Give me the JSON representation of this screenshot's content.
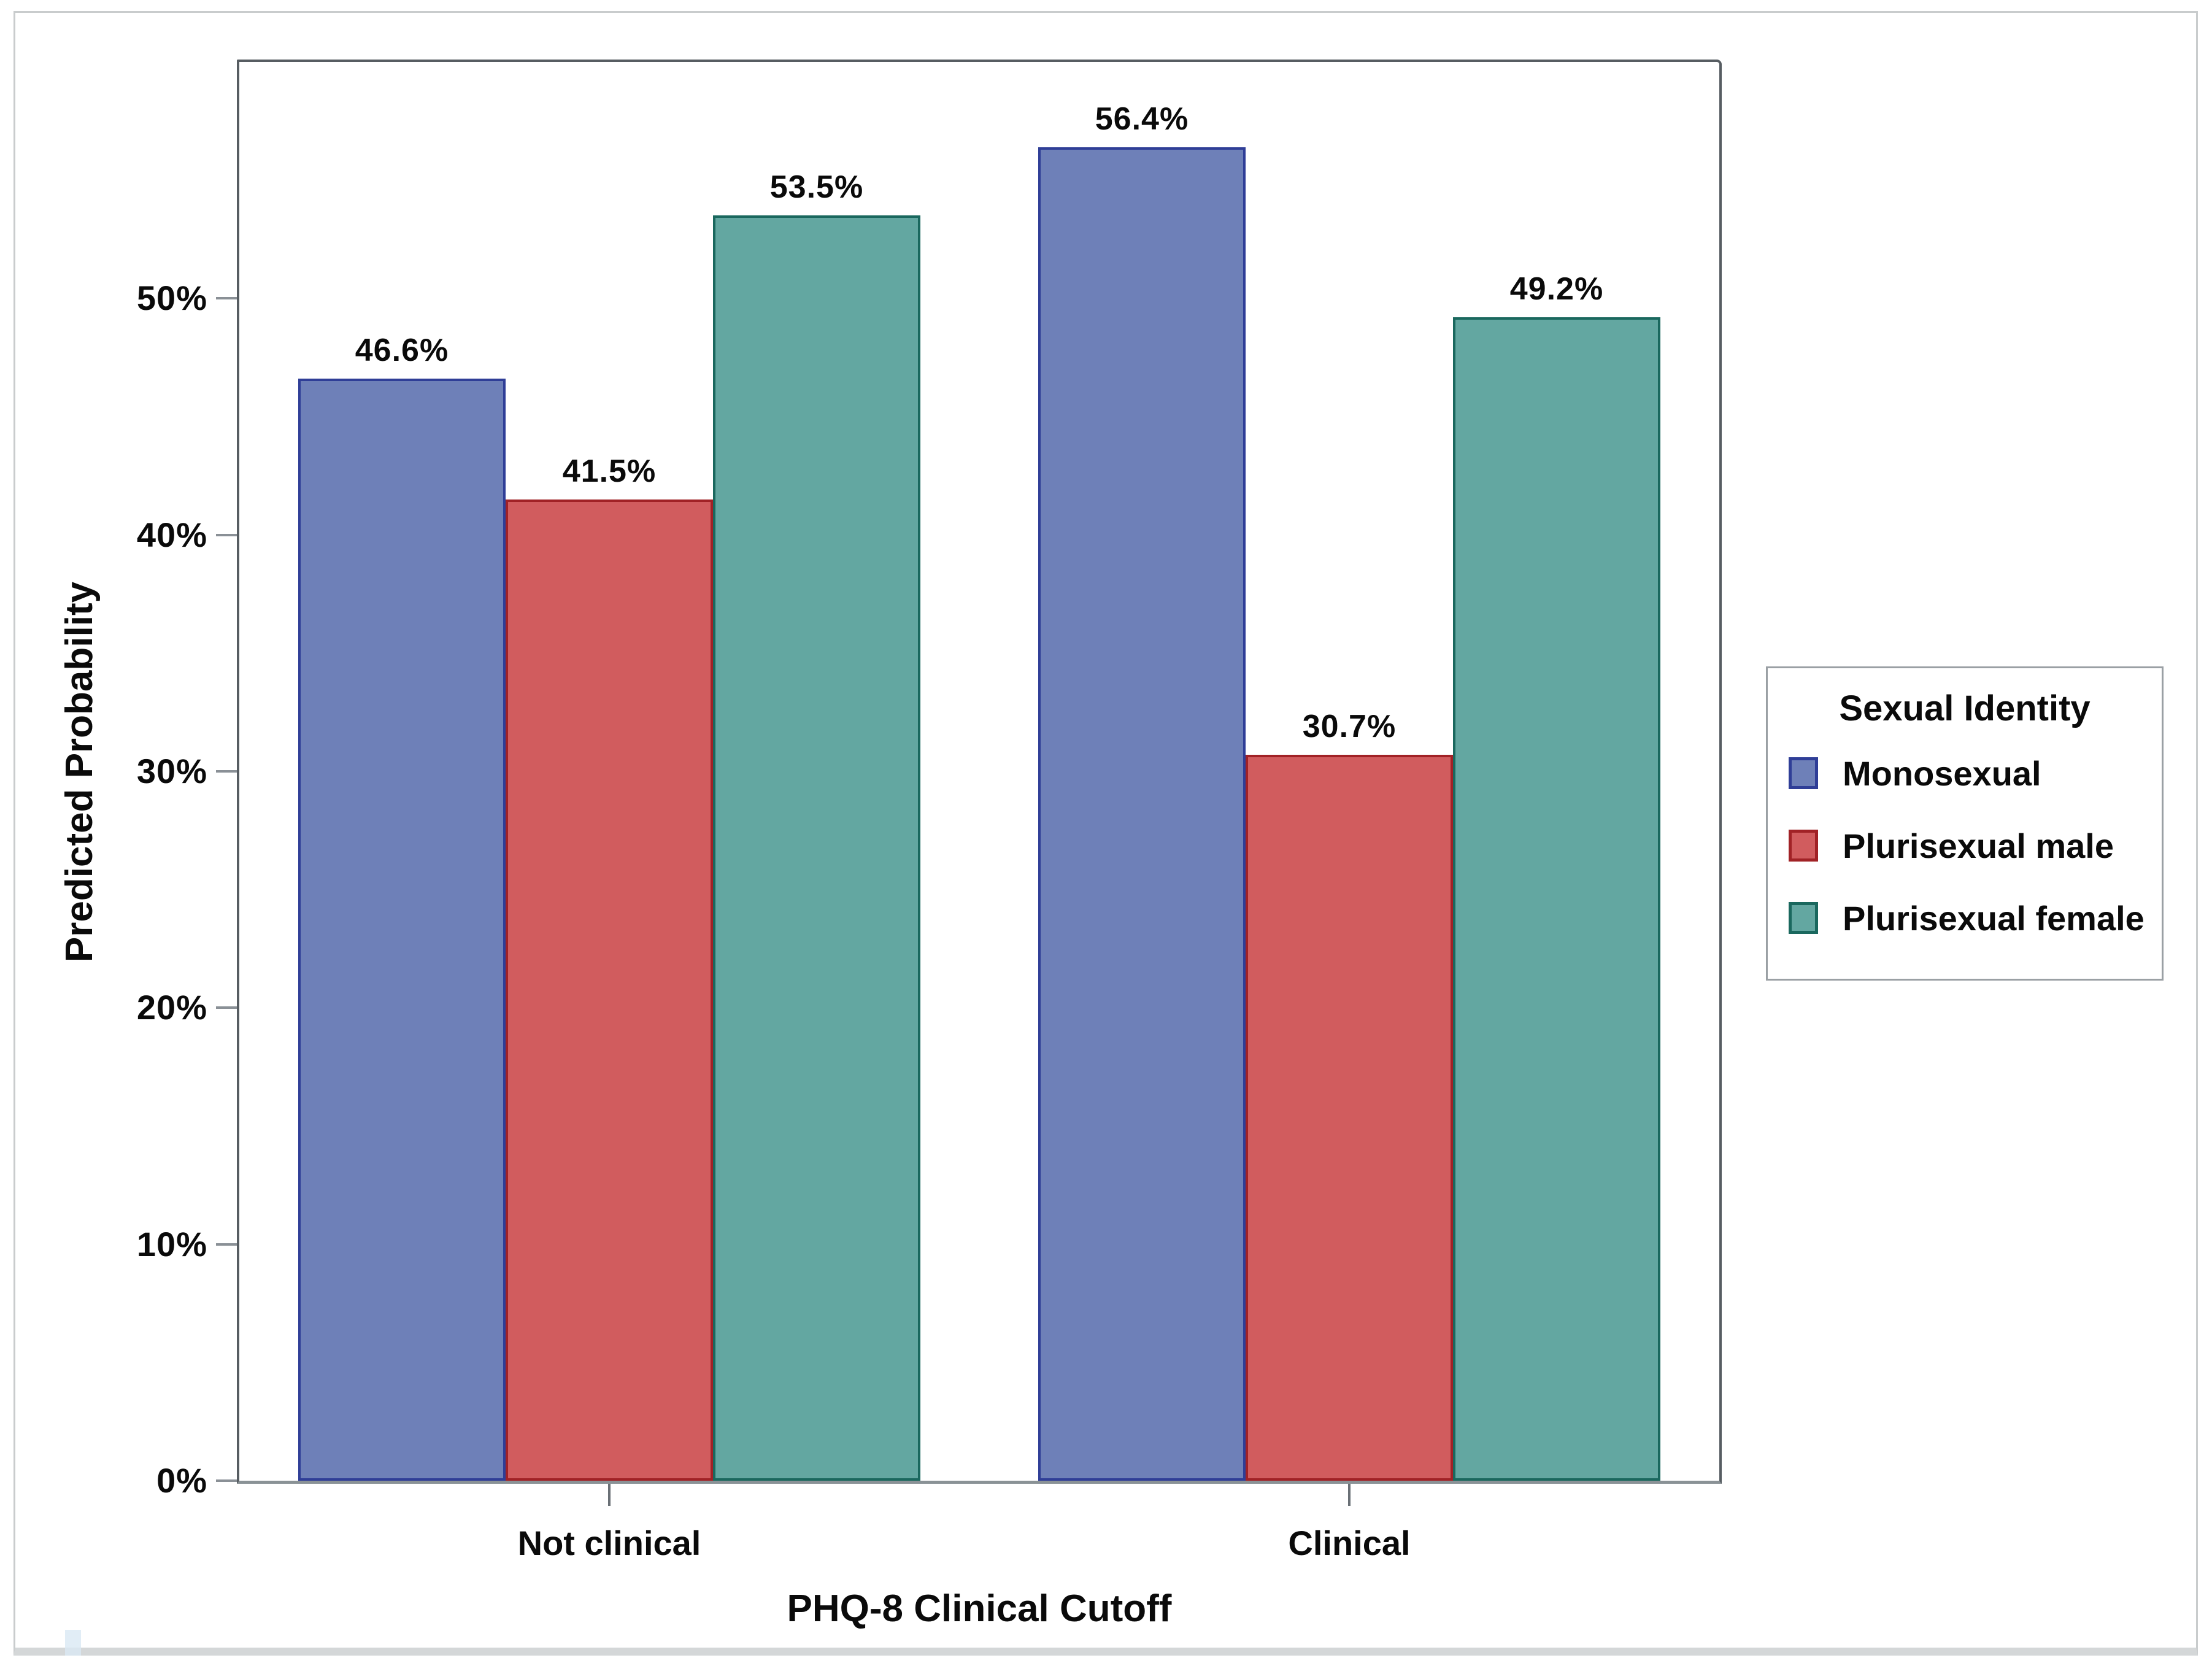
{
  "chart_data": {
    "type": "bar",
    "title": "",
    "categories": [
      "Not clinical",
      "Clinical"
    ],
    "series": [
      {
        "name": "Monosexual",
        "values": [
          46.6,
          56.4
        ],
        "labels": [
          "46.6%",
          "56.4%"
        ],
        "fill": "#6E80B8",
        "border": "#2F3E97"
      },
      {
        "name": "Plurisexual male",
        "values": [
          41.5,
          30.7
        ],
        "labels": [
          "41.5%",
          "30.7%"
        ],
        "fill": "#D15C5E",
        "border": "#A12226"
      },
      {
        "name": "Plurisexual female",
        "values": [
          53.5,
          49.2
        ],
        "labels": [
          "53.5%",
          "49.2%"
        ],
        "fill": "#63A7A1",
        "border": "#1A685E"
      }
    ],
    "xlabel": "PHQ-8 Clinical Cutoff",
    "ylabel": "Predicted Probability",
    "ylim": [
      0,
      60
    ],
    "yticks": [
      {
        "value": 0,
        "label": "0%"
      },
      {
        "value": 10,
        "label": "10%"
      },
      {
        "value": 20,
        "label": "20%"
      },
      {
        "value": 30,
        "label": "30%"
      },
      {
        "value": 40,
        "label": "40%"
      },
      {
        "value": 50,
        "label": "50%"
      }
    ],
    "legend_title": "Sexual Identity",
    "legend_position": "right",
    "grid": false
  },
  "colors": {
    "plot_frame": "#575d62",
    "baseline": "#8a9296",
    "tick": "#8a9096",
    "text": "#0a0a0a",
    "legend_border": "#9aa0a4",
    "outer_border": "#c9cccd",
    "bottom_band": "#d4d7d8",
    "background": "#ffffff",
    "artifact": "#d9e9f4"
  }
}
